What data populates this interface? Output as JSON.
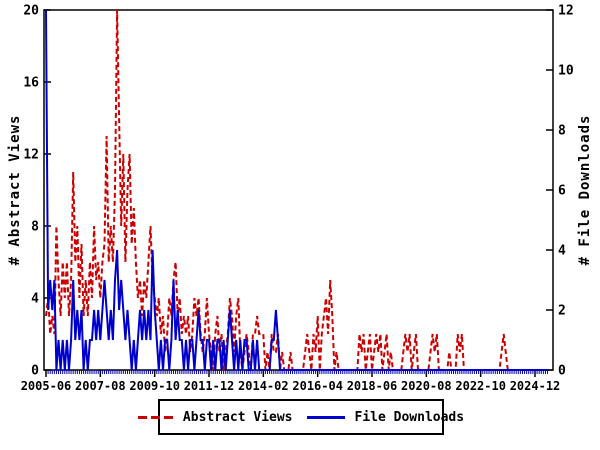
{
  "colors": {
    "abstract_views": "#cc0000",
    "file_downloads": "#0000cc",
    "axis": "#000000",
    "x_minor_tick": "#0000aa",
    "background": "#ffffff"
  },
  "left_axis_title": "# Abstract Views",
  "right_axis_title": "# File Downloads",
  "legend": {
    "abstract_label": "Abstract Views",
    "downloads_label": "File Downloads"
  },
  "chart_data": {
    "type": "line",
    "title": "",
    "x_start_month": "2005-06",
    "x_end_month": "2025-06",
    "x_interval": "monthly",
    "n_months": 241,
    "grid": false,
    "legend_position": "bottom-center",
    "x_tick_month_indices": [
      0,
      26,
      52,
      78,
      104,
      130,
      156,
      182,
      208,
      234
    ],
    "x_tick_labels": [
      "2005-06",
      "2007-08",
      "2009-10",
      "2011-12",
      "2014-02",
      "2016-04",
      "2018-06",
      "2020-08",
      "2022-10",
      "2024-12"
    ],
    "left_axis": {
      "label": "# Abstract Views",
      "min": 0,
      "max": 20,
      "ticks": [
        0,
        4,
        8,
        12,
        16,
        20
      ]
    },
    "right_axis": {
      "label": "# File Downloads",
      "min": 0,
      "max": 12,
      "ticks": [
        0,
        2,
        4,
        6,
        8,
        10,
        12
      ]
    },
    "series": [
      {
        "name": "Abstract Views",
        "axis": "left",
        "style": "dashed",
        "color": "#cc0000",
        "values": [
          3,
          4,
          2,
          3,
          2,
          8,
          5,
          3,
          6,
          4,
          6,
          3,
          5,
          11,
          6,
          8,
          4,
          7,
          3,
          5,
          3,
          6,
          4,
          8,
          5,
          6,
          4,
          6,
          7,
          13,
          6,
          8,
          6,
          10,
          20,
          14,
          8,
          12,
          6,
          10,
          12,
          7,
          9,
          6,
          4,
          5,
          3,
          5,
          4,
          6,
          8,
          5,
          4,
          3,
          4,
          2,
          3,
          1,
          2,
          4,
          3,
          5,
          6,
          3,
          4,
          2,
          3,
          2,
          3,
          1,
          2,
          4,
          3,
          4,
          2,
          1,
          2,
          4,
          2,
          1,
          0,
          2,
          3,
          1,
          2,
          0,
          1,
          2,
          4,
          3,
          1,
          3,
          4,
          1,
          0,
          1,
          2,
          1,
          0,
          2,
          2,
          3,
          2,
          2,
          2,
          0,
          1,
          0,
          2,
          1,
          1,
          2,
          0,
          1,
          0,
          0,
          0,
          1,
          0,
          0,
          0,
          0,
          0,
          0,
          1,
          2,
          1,
          0,
          2,
          1,
          3,
          0,
          2,
          3,
          4,
          2,
          5,
          3,
          0,
          1,
          0,
          0,
          0,
          0,
          0,
          0,
          0,
          0,
          0,
          0,
          2,
          1,
          2,
          0,
          1,
          2,
          0,
          1,
          2,
          1,
          2,
          0,
          1,
          2,
          0,
          1,
          0,
          0,
          0,
          0,
          0,
          1,
          2,
          1,
          2,
          0,
          1,
          2,
          0,
          0,
          0,
          0,
          0,
          0,
          1,
          2,
          1,
          2,
          0,
          0,
          0,
          0,
          0,
          1,
          0,
          0,
          0,
          2,
          1,
          2,
          0,
          0,
          0,
          0,
          0,
          0,
          0,
          0,
          0,
          0,
          0,
          0,
          0,
          0,
          0,
          0,
          0,
          0,
          1,
          2,
          1,
          0,
          0,
          0,
          0,
          0,
          0,
          0,
          0,
          0,
          0,
          0,
          0,
          0,
          0,
          0,
          0,
          0,
          0,
          0,
          0
        ]
      },
      {
        "name": "File Downloads",
        "axis": "right",
        "style": "solid",
        "color": "#0000cc",
        "values": [
          12,
          2,
          3,
          2,
          3,
          0,
          1,
          0,
          1,
          0,
          1,
          0,
          1,
          3,
          1,
          2,
          1,
          2,
          0,
          1,
          0,
          1,
          1,
          2,
          1,
          2,
          1,
          2,
          3,
          2,
          1,
          2,
          1,
          3,
          4,
          2,
          3,
          2,
          1,
          2,
          1,
          0,
          1,
          0,
          1,
          2,
          1,
          2,
          1,
          2,
          1,
          4,
          2,
          1,
          0,
          1,
          0,
          1,
          1,
          0,
          1,
          3,
          1,
          2,
          1,
          1,
          0,
          1,
          0,
          1,
          1,
          0,
          1,
          2,
          1,
          1,
          0,
          1,
          1,
          0,
          1,
          0,
          1,
          1,
          0,
          1,
          0,
          1,
          2,
          1,
          0,
          1,
          0,
          1,
          0,
          1,
          1,
          0,
          0,
          1,
          0,
          1,
          0,
          0,
          0,
          0,
          0,
          0,
          1,
          1,
          2,
          1,
          0,
          0,
          0,
          0,
          0,
          0,
          0,
          0,
          0,
          0,
          0,
          0,
          0,
          0,
          0,
          0,
          0,
          0,
          0,
          0,
          0,
          0,
          0,
          0,
          0,
          0,
          0,
          0,
          0,
          0,
          0,
          0,
          0,
          0,
          0,
          0,
          0,
          0,
          0,
          0,
          0,
          0,
          0,
          0,
          0,
          0,
          0,
          0,
          0,
          0,
          0,
          0,
          0,
          0,
          0,
          0,
          0,
          0,
          0,
          0,
          0,
          0,
          0,
          0,
          0,
          0,
          0,
          0,
          0,
          0,
          0,
          0,
          0,
          0,
          0,
          0,
          0,
          0,
          0,
          0,
          0,
          0,
          0,
          0,
          0,
          0,
          0,
          0,
          0,
          0,
          0,
          0,
          0,
          0,
          0,
          0,
          0,
          0,
          0,
          0,
          0,
          0,
          0,
          0,
          0,
          0,
          0,
          0,
          0,
          0,
          0,
          0,
          0,
          0,
          0,
          0,
          0,
          0,
          0,
          0,
          0,
          0,
          0,
          0,
          0,
          0,
          0,
          0,
          0
        ]
      }
    ]
  }
}
